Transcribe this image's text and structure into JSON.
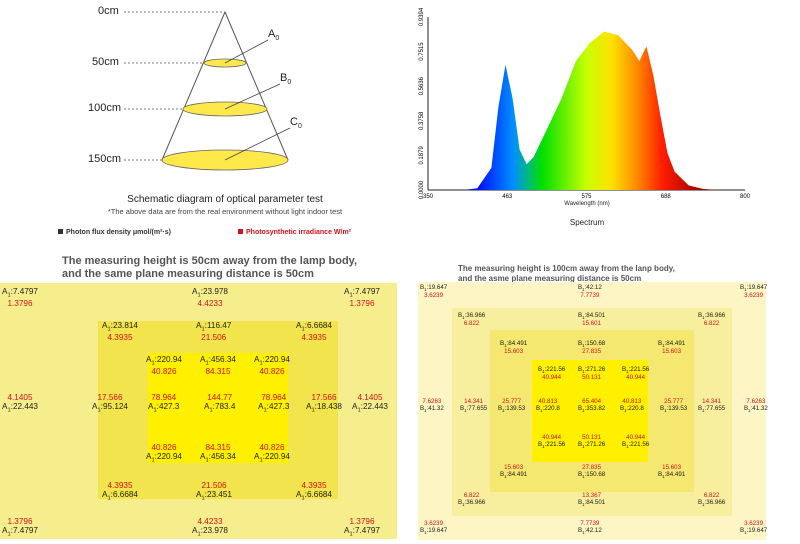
{
  "schematic": {
    "labels": {
      "d0": "0cm",
      "d50": "50cm",
      "d100": "100cm",
      "d150": "150cm"
    },
    "points": {
      "a": "A",
      "a_sub": "0",
      "b": "B",
      "b_sub": "0",
      "c": "C",
      "c_sub": "0"
    },
    "caption": "Schematic diagram of optical parameter test",
    "note": "*The above data are from the real environment without light indoor test"
  },
  "legend": {
    "ppfd": "Photon flux density  μmol/(m²·s)",
    "irradiance": "Photosynthetic irradiance  W/m²"
  },
  "colors": {
    "red": "#d0121b",
    "yellow_light": "#f6ee8c",
    "yellow_mid": "#f2e44c",
    "yellow_bright": "#fff000"
  },
  "chart_data": {
    "type": "area",
    "title": "",
    "xlabel": "Wavelength (nm)",
    "caption": "Spectrum",
    "xlim": [
      350,
      800
    ],
    "ylim": [
      0,
      0.9394
    ],
    "x_ticks": [
      "350",
      "463",
      "575",
      "688",
      "800"
    ],
    "y_ticks": [
      "0.0000",
      "0.1879",
      "0.3758",
      "0.5636",
      "0.7515",
      "0.9394"
    ],
    "x": [
      350,
      400,
      420,
      440,
      450,
      460,
      470,
      480,
      490,
      500,
      520,
      540,
      560,
      580,
      600,
      620,
      640,
      650,
      660,
      670,
      680,
      690,
      700,
      720,
      740,
      760,
      800
    ],
    "y": [
      0,
      0,
      0.01,
      0.12,
      0.45,
      0.68,
      0.5,
      0.22,
      0.14,
      0.18,
      0.34,
      0.5,
      0.7,
      0.8,
      0.86,
      0.84,
      0.76,
      0.7,
      0.78,
      0.62,
      0.4,
      0.2,
      0.1,
      0.025,
      0.006,
      0,
      0
    ]
  },
  "grid1": {
    "title1": "The measuring height is 50cm away from the lamp body,",
    "title2": "and the same plane measuring distance is 50cm",
    "cells": [
      {
        "t": "A",
        "s": "1",
        "v": "7.4797",
        "r": "1.3796"
      },
      {
        "t": "A",
        "s": "1",
        "v": "23.978",
        "r": "4.4233"
      },
      {
        "t": "A",
        "s": "1",
        "v": "7.4797",
        "r": "1.3796"
      },
      {
        "t": "A",
        "s": "1",
        "v": "23.814",
        "r": "4.3935"
      },
      {
        "t": "A",
        "s": "1",
        "v": "116.47",
        "r": "21.506"
      },
      {
        "t": "A",
        "s": "1",
        "v": "6.6684",
        "r": "4.3935"
      },
      {
        "t": "A",
        "s": "1",
        "v": "220.94",
        "r": "40.826"
      },
      {
        "t": "A",
        "s": "1",
        "v": "456.34",
        "r": "84.315"
      },
      {
        "t": "A",
        "s": "1",
        "v": "220.94",
        "r": "40.826"
      },
      {
        "t": "A",
        "s": "1",
        "v": "22.443",
        "r": "4.1405"
      },
      {
        "t": "A",
        "s": "1",
        "v": "95.124",
        "r": "17.566"
      },
      {
        "t": "A",
        "s": "1",
        "v": "427.3",
        "r": "78.964"
      },
      {
        "t": "A",
        "s": "1",
        "v": "783.4",
        "r": "144.77"
      },
      {
        "t": "A",
        "s": "1",
        "v": "427.3",
        "r": "78.964"
      },
      {
        "t": "A",
        "s": "1",
        "v": "18.438",
        "r": "17.566"
      },
      {
        "t": "A",
        "s": "1",
        "v": "22.443",
        "r": "4.1405"
      },
      {
        "t": "A",
        "s": "1",
        "v": "220.94",
        "r": "40.826"
      },
      {
        "t": "A",
        "s": "1",
        "v": "456.34",
        "r": "84.315"
      },
      {
        "t": "A",
        "s": "1",
        "v": "220.94",
        "r": "40.826"
      },
      {
        "t": "A",
        "s": "1",
        "v": "6.6684",
        "r": "4.3935"
      },
      {
        "t": "A",
        "s": "1",
        "v": "23.451",
        "r": "21.506"
      },
      {
        "t": "A",
        "s": "1",
        "v": "6.6684",
        "r": "4.3935"
      },
      {
        "t": "A",
        "s": "1",
        "v": "7.4797",
        "r": "1.3796"
      },
      {
        "t": "A",
        "s": "1",
        "v": "23.978",
        "r": "4.4233"
      },
      {
        "t": "A",
        "s": "1",
        "v": "7.4797",
        "r": "1.3796"
      }
    ]
  },
  "grid2": {
    "title1": "The measuring height is 100cm away from the lanp body,",
    "title2": "and the asme plane measuring distance is 50cm",
    "cells": [
      {
        "t": "B",
        "s": "1",
        "v": "19.647",
        "r": "3.6239"
      },
      {
        "t": "B",
        "s": "1",
        "v": "42.12",
        "r": "7.7739"
      },
      {
        "t": "B",
        "s": "1",
        "v": "19.647",
        "r": "3.6239"
      },
      {
        "t": "B",
        "s": "1",
        "v": "36.966",
        "r": "6.822"
      },
      {
        "t": "B",
        "s": "1",
        "v": "84.501",
        "r": "15.601"
      },
      {
        "t": "B",
        "s": "1",
        "v": "36.966",
        "r": "6.822"
      },
      {
        "t": "B",
        "s": "1",
        "v": "84.491",
        "r": "15.603"
      },
      {
        "t": "B",
        "s": "1",
        "v": "150.68",
        "r": "27.835"
      },
      {
        "t": "B",
        "s": "1",
        "v": "84.491",
        "r": "15.603"
      },
      {
        "t": "B",
        "s": "1",
        "v": "221.56",
        "r": "40.944"
      },
      {
        "t": "B",
        "s": "1",
        "v": "271.26",
        "r": "50.131"
      },
      {
        "t": "B",
        "s": "1",
        "v": "221.56",
        "r": "40.944"
      },
      {
        "t": "B",
        "s": "1",
        "v": "41.32",
        "r": "7.6263"
      },
      {
        "t": "B",
        "s": "1",
        "v": "77.655",
        "r": "14.341"
      },
      {
        "t": "B",
        "s": "1",
        "v": "139.53",
        "r": "25.777"
      },
      {
        "t": "B",
        "s": "1",
        "v": "220.8",
        "r": "40.813"
      },
      {
        "t": "B",
        "s": "1",
        "v": "353.82",
        "r": "65.404"
      },
      {
        "t": "B",
        "s": "1",
        "v": "220.8",
        "r": "40.813"
      },
      {
        "t": "B",
        "s": "1",
        "v": "139.53",
        "r": "25.777"
      },
      {
        "t": "B",
        "s": "1",
        "v": "77.655",
        "r": "14.341"
      },
      {
        "t": "B",
        "s": "1",
        "v": "41.32",
        "r": "7.6263"
      },
      {
        "t": "B",
        "s": "1",
        "v": "221.56",
        "r": "40.944"
      },
      {
        "t": "B",
        "s": "1",
        "v": "271.26",
        "r": "50.131"
      },
      {
        "t": "B",
        "s": "1",
        "v": "221.56",
        "r": "40.944"
      },
      {
        "t": "B",
        "s": "1",
        "v": "84.491",
        "r": "15.603"
      },
      {
        "t": "B",
        "s": "1",
        "v": "150.68",
        "r": "27.835"
      },
      {
        "t": "B",
        "s": "1",
        "v": "84.491",
        "r": "15.603"
      },
      {
        "t": "B",
        "s": "1",
        "v": "36.966",
        "r": "6.822"
      },
      {
        "t": "B",
        "s": "1",
        "v": "84.501",
        "r": "13.367"
      },
      {
        "t": "B",
        "s": "1",
        "v": "36.966",
        "r": "6.822"
      },
      {
        "t": "B",
        "s": "1",
        "v": "19.647",
        "r": "3.6239"
      },
      {
        "t": "B",
        "s": "1",
        "v": "42.12",
        "r": "7.7739"
      },
      {
        "t": "B",
        "s": "1",
        "v": "19.647",
        "r": "3.6239"
      }
    ]
  }
}
